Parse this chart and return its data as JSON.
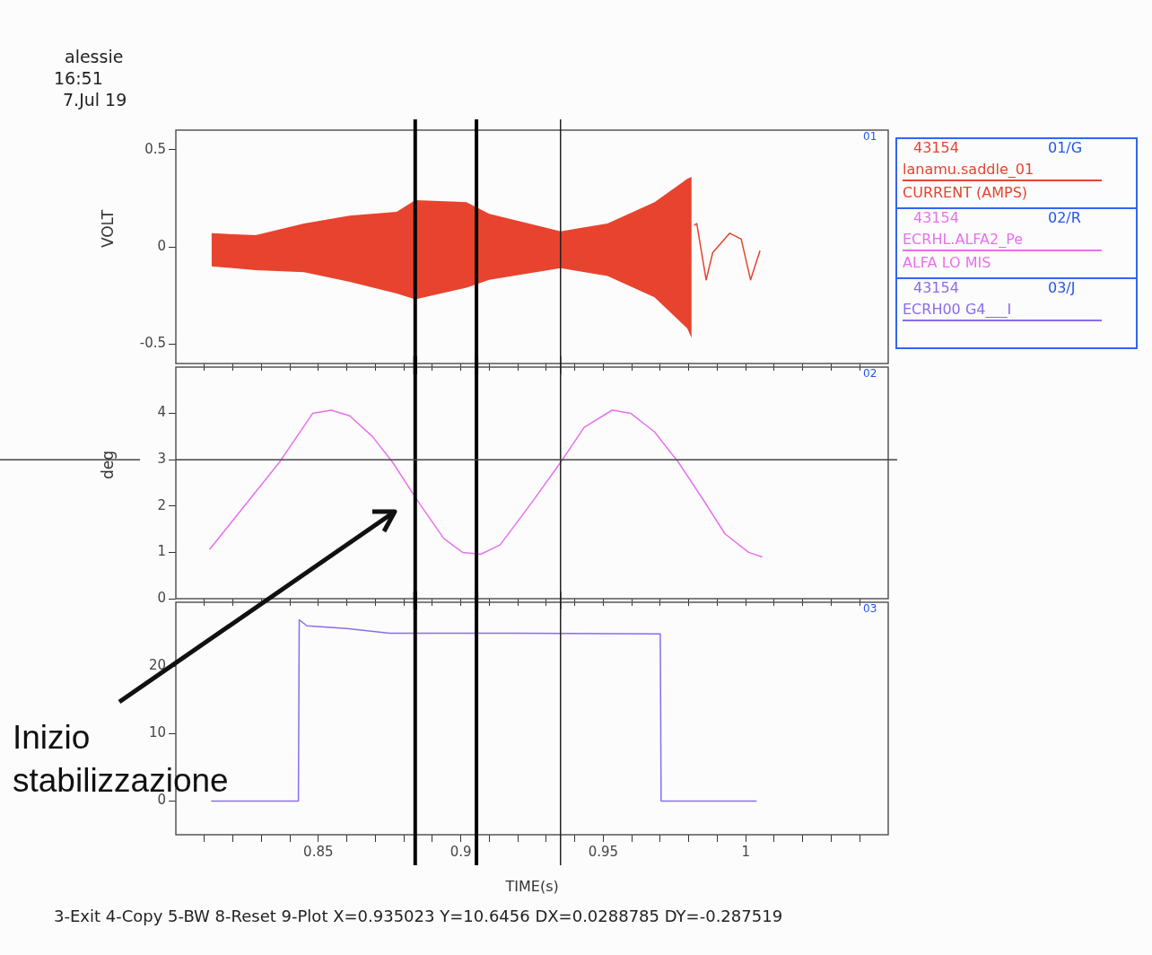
{
  "chart_data": [
    {
      "type": "line",
      "ylabel": "VOLT",
      "xlim": [
        0.8,
        1.05
      ],
      "ylim": [
        -0.6,
        0.6
      ],
      "yticks": [
        -0.5,
        0,
        0.5
      ],
      "xticks": [
        {
          "value": 0.81,
          "label": null
        },
        {
          "value": 0.82,
          "label": null
        },
        {
          "value": 0.83,
          "label": null
        },
        {
          "value": 0.84,
          "label": null
        },
        {
          "value": 0.85,
          "label": null
        },
        {
          "value": 0.86,
          "label": null
        },
        {
          "value": 0.87,
          "label": null
        },
        {
          "value": 0.88,
          "label": null
        },
        {
          "value": 0.89,
          "label": null
        },
        {
          "value": 0.9,
          "label": null
        },
        {
          "value": 0.91,
          "label": null
        },
        {
          "value": 0.92,
          "label": null
        },
        {
          "value": 0.93,
          "label": null
        },
        {
          "value": 0.94,
          "label": null
        },
        {
          "value": 0.95,
          "label": null
        },
        {
          "value": 0.96,
          "label": null
        },
        {
          "value": 0.97,
          "label": null
        },
        {
          "value": 0.98,
          "label": null
        },
        {
          "value": 0.99,
          "label": null
        },
        {
          "value": 1,
          "label": null
        },
        {
          "value": 1.01,
          "label": null
        },
        {
          "value": 1.02,
          "label": null
        },
        {
          "value": 1.03,
          "label": null
        },
        {
          "value": 1.04,
          "label": null
        }
      ],
      "tick_labels": "y",
      "legend": "right",
      "legend_title": "43154",
      "series": [
        {
          "name": "lanamu.saddle_01",
          "color": "#e8432e",
          "x": [
            0.8125,
            0.828,
            0.845,
            0.861,
            0.8775,
            0.884,
            0.902,
            0.91,
            0.935,
            0.9515,
            0.968,
            0.9795,
            0.981,
            0.9819,
            0.9828,
            0.9861,
            0.9884,
            0.9944,
            0.9984,
            1.0017,
            1.005
          ],
          "values": [
            null,
            null,
            null,
            null,
            null,
            null,
            null,
            null,
            null,
            null,
            null,
            null,
            null,
            0.11,
            0.12,
            -0.17,
            -0.03,
            0.07,
            0.04,
            -0.17,
            -0.02
          ],
          "upper": [
            0.07,
            0.06,
            0.12,
            0.16,
            0.18,
            0.24,
            0.23,
            0.17,
            0.08,
            0.12,
            0.23,
            0.35,
            0.36,
            null,
            null,
            null,
            null,
            null,
            null,
            null,
            null
          ],
          "lower": [
            -0.1,
            -0.12,
            -0.13,
            -0.18,
            -0.24,
            -0.27,
            -0.21,
            -0.17,
            -0.11,
            -0.15,
            -0.26,
            -0.42,
            -0.47,
            null,
            null,
            null,
            null,
            null,
            null,
            null,
            null
          ]
        }
      ],
      "ref_lines": [
        {
          "axis": "x",
          "value": 0.884,
          "color": "#000000"
        },
        {
          "axis": "x",
          "value": 0.9055,
          "color": "#000000"
        },
        {
          "axis": "x",
          "value": 0.935,
          "color": "#222222"
        }
      ],
      "annotations": [
        "01",
        "01/G",
        "CURRENT (AMPS)",
        "alessie",
        "16:51",
        "7.Jul 19"
      ]
    },
    {
      "type": "line",
      "ylabel": "deg",
      "xlim": [
        0.8,
        1.05
      ],
      "ylim": [
        0,
        5
      ],
      "yticks": [
        0,
        1,
        2,
        3,
        4
      ],
      "xticks": [
        {
          "value": 0.81,
          "label": null
        },
        {
          "value": 0.82,
          "label": null
        },
        {
          "value": 0.83,
          "label": null
        },
        {
          "value": 0.84,
          "label": null
        },
        {
          "value": 0.85,
          "label": null
        },
        {
          "value": 0.86,
          "label": null
        },
        {
          "value": 0.87,
          "label": null
        },
        {
          "value": 0.88,
          "label": null
        },
        {
          "value": 0.89,
          "label": null
        },
        {
          "value": 0.9,
          "label": null
        },
        {
          "value": 0.91,
          "label": null
        },
        {
          "value": 0.92,
          "label": null
        },
        {
          "value": 0.93,
          "label": null
        },
        {
          "value": 0.94,
          "label": null
        },
        {
          "value": 0.95,
          "label": null
        },
        {
          "value": 0.96,
          "label": null
        },
        {
          "value": 0.97,
          "label": null
        },
        {
          "value": 0.98,
          "label": null
        },
        {
          "value": 0.99,
          "label": null
        },
        {
          "value": 1,
          "label": null
        },
        {
          "value": 1.01,
          "label": null
        },
        {
          "value": 1.02,
          "label": null
        },
        {
          "value": 1.03,
          "label": null
        },
        {
          "value": 1.04,
          "label": null
        }
      ],
      "tick_labels": "y",
      "legend": "right",
      "legend_title": "43154",
      "series": [
        {
          "name": "ECRHL.ALFA2_Pe",
          "color": "#e870ee",
          "x": [
            0.8118,
            0.8364,
            0.848,
            0.8545,
            0.861,
            0.869,
            0.876,
            0.885,
            0.894,
            0.9006,
            0.907,
            0.9138,
            0.9252,
            0.9351,
            0.9433,
            0.9531,
            0.9597,
            0.968,
            0.9763,
            0.9844,
            0.9927,
            1.001,
            1.0058
          ],
          "values": [
            1.06,
            2.95,
            4.0,
            4.07,
            3.95,
            3.5,
            2.95,
            2.1,
            1.3,
            1.0,
            0.96,
            1.16,
            2.1,
            2.95,
            3.7,
            4.07,
            4.0,
            3.6,
            2.95,
            2.2,
            1.4,
            1.0,
            0.9
          ]
        }
      ],
      "ref_lines": [
        {
          "axis": "x",
          "value": 0.884,
          "color": "#000000"
        },
        {
          "axis": "x",
          "value": 0.9055,
          "color": "#000000"
        },
        {
          "axis": "x",
          "value": 0.935,
          "color": "#222222"
        },
        {
          "axis": "y",
          "value": 3,
          "color": "#444444"
        }
      ],
      "annotations": [
        "02",
        "02/R",
        "ALFA LO MIS"
      ]
    },
    {
      "type": "line",
      "xlabel": "TIME(s)",
      "xlim": [
        0.8,
        1.05
      ],
      "ylim": [
        -5,
        29.5
      ],
      "yticks": [
        0,
        10,
        20
      ],
      "xticks": [
        {
          "value": 0.81,
          "label": null
        },
        {
          "value": 0.82,
          "label": null
        },
        {
          "value": 0.83,
          "label": null
        },
        {
          "value": 0.84,
          "label": null
        },
        0.85,
        {
          "value": 0.86,
          "label": null
        },
        {
          "value": 0.87,
          "label": null
        },
        {
          "value": 0.88,
          "label": null
        },
        {
          "value": 0.89,
          "label": null
        },
        0.9,
        {
          "value": 0.91,
          "label": null
        },
        {
          "value": 0.92,
          "label": null
        },
        {
          "value": 0.93,
          "label": null
        },
        {
          "value": 0.94,
          "label": null
        },
        0.95,
        {
          "value": 0.96,
          "label": null
        },
        {
          "value": 0.97,
          "label": null
        },
        {
          "value": 0.98,
          "label": null
        },
        {
          "value": 0.99,
          "label": null
        },
        1,
        {
          "value": 1.01,
          "label": null
        },
        {
          "value": 1.02,
          "label": null
        },
        {
          "value": 1.03,
          "label": null
        },
        {
          "value": 1.04,
          "label": null
        }
      ],
      "legend": "right",
      "legend_title": "43154",
      "series": [
        {
          "name": "ECRH00 G4___I",
          "color": "#8a6cf0",
          "x": [
            0.8124,
            0.843,
            0.8433,
            0.846,
            0.86,
            0.875,
            0.92,
            0.97,
            0.9703,
            1.0038
          ],
          "values": [
            0,
            0,
            26.9,
            26.0,
            25.6,
            24.9,
            24.9,
            24.8,
            0,
            0
          ]
        }
      ],
      "ref_lines": [
        {
          "axis": "x",
          "value": 0.884,
          "color": "#000000"
        },
        {
          "axis": "x",
          "value": 0.9055,
          "color": "#000000"
        },
        {
          "axis": "x",
          "value": 0.935,
          "color": "#222222"
        }
      ],
      "annotations": [
        "03",
        "03/J",
        "Inizio stabilizzazione",
        "3-Exit 4-Copy 5-BW 8-Reset 9-Plot X=0.935023 Y=10.6456 DX=0.0288785 DY=-0.287519"
      ]
    }
  ]
}
